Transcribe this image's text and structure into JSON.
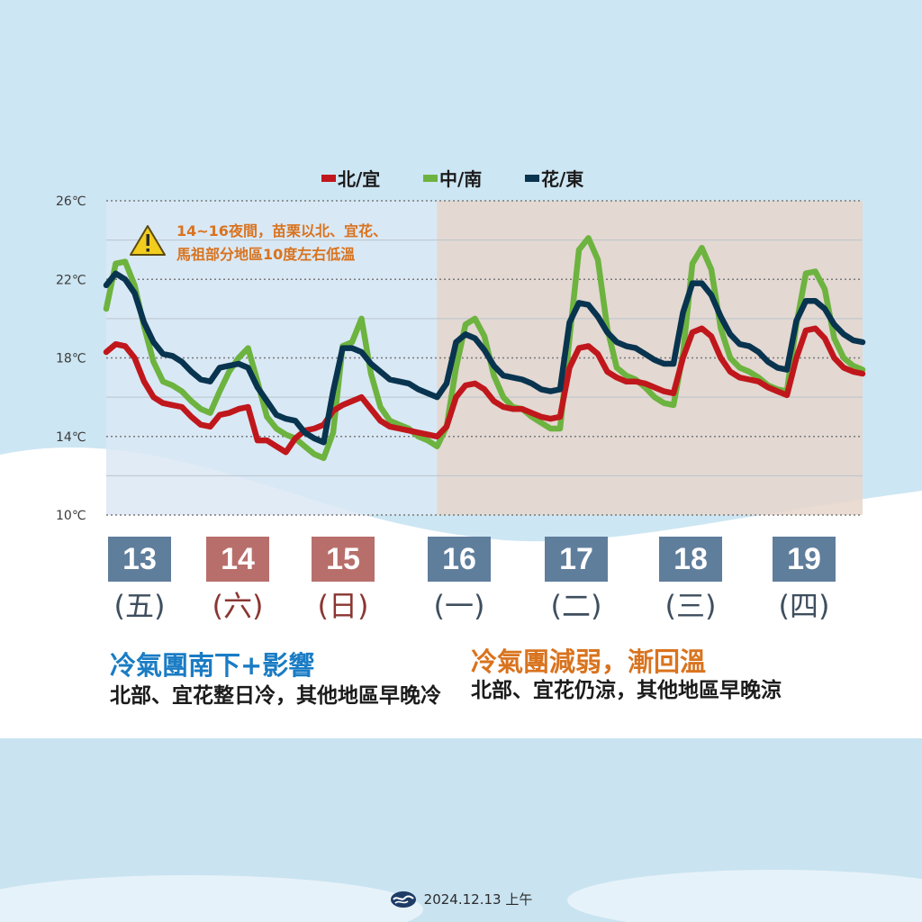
{
  "chart_data": {
    "type": "line",
    "yticks": [
      "26℃",
      "22℃",
      "18℃",
      "14℃",
      "10℃"
    ],
    "ylim": [
      10,
      26
    ],
    "legend": [
      {
        "label": "北/宜",
        "color": "#c0171c"
      },
      {
        "label": "中/南",
        "color": "#6db33f"
      },
      {
        "label": "花/東",
        "color": "#08344f"
      }
    ],
    "series": [
      {
        "name": "北/宜",
        "color": "#c0171c",
        "values": [
          18.3,
          18.7,
          18.6,
          18.0,
          16.8,
          16.0,
          15.7,
          15.6,
          15.5,
          15.0,
          14.6,
          14.5,
          15.1,
          15.2,
          15.4,
          15.5,
          13.8,
          13.8,
          13.5,
          13.2,
          13.9,
          14.3,
          14.4,
          14.6,
          15.3,
          15.6,
          15.8,
          16.0,
          15.4,
          14.8,
          14.5,
          14.4,
          14.3,
          14.2,
          14.1,
          14.0,
          14.5,
          16.0,
          16.6,
          16.7,
          16.4,
          15.8,
          15.5,
          15.4,
          15.4,
          15.2,
          15.0,
          14.9,
          15.0,
          17.5,
          18.5,
          18.6,
          18.2,
          17.3,
          17.0,
          16.8,
          16.8,
          16.7,
          16.5,
          16.3,
          16.2,
          18.0,
          19.3,
          19.5,
          19.1,
          18.0,
          17.3,
          17.0,
          16.9,
          16.8,
          16.5,
          16.3,
          16.1,
          18.0,
          19.4,
          19.5,
          19.0,
          18.0,
          17.5,
          17.3,
          17.2
        ]
      },
      {
        "name": "中/南",
        "color": "#6db33f",
        "values": [
          20.5,
          22.8,
          22.9,
          21.7,
          19.6,
          17.8,
          16.8,
          16.6,
          16.3,
          15.8,
          15.4,
          15.2,
          16.3,
          17.3,
          18.0,
          18.5,
          16.8,
          15.0,
          14.4,
          14.1,
          13.9,
          13.5,
          13.1,
          12.9,
          14.2,
          18.6,
          18.8,
          20.0,
          17.2,
          15.5,
          14.8,
          14.6,
          14.4,
          14.0,
          13.8,
          13.5,
          14.5,
          17.5,
          19.7,
          20.0,
          19.1,
          17.1,
          16.0,
          15.5,
          15.4,
          15.0,
          14.7,
          14.4,
          14.4,
          19.0,
          23.5,
          24.1,
          23.0,
          19.5,
          17.5,
          17.1,
          16.9,
          16.5,
          16.0,
          15.7,
          15.6,
          18.2,
          22.8,
          23.6,
          22.5,
          19.5,
          18.0,
          17.5,
          17.3,
          17.0,
          16.6,
          16.4,
          16.3,
          19.7,
          22.3,
          22.4,
          21.5,
          19.0,
          18.0,
          17.6,
          17.4
        ]
      },
      {
        "name": "花/東",
        "color": "#08344f",
        "values": [
          21.7,
          22.3,
          22.0,
          21.3,
          19.8,
          18.8,
          18.2,
          18.1,
          17.8,
          17.3,
          16.9,
          16.8,
          17.5,
          17.6,
          17.7,
          17.5,
          16.5,
          15.8,
          15.1,
          14.9,
          14.8,
          14.2,
          13.9,
          13.7,
          16.3,
          18.5,
          18.5,
          18.3,
          17.7,
          17.3,
          16.9,
          16.8,
          16.7,
          16.4,
          16.2,
          16.0,
          16.7,
          18.8,
          19.2,
          19.0,
          18.4,
          17.6,
          17.1,
          17.0,
          16.9,
          16.7,
          16.4,
          16.3,
          16.4,
          19.8,
          20.8,
          20.7,
          20.1,
          19.3,
          18.8,
          18.6,
          18.5,
          18.2,
          17.9,
          17.7,
          17.7,
          20.3,
          21.8,
          21.8,
          21.2,
          20.1,
          19.2,
          18.7,
          18.6,
          18.3,
          17.8,
          17.5,
          17.4,
          19.9,
          20.9,
          20.9,
          20.5,
          19.7,
          19.2,
          18.9,
          18.8
        ]
      }
    ],
    "shade_regions": [
      {
        "from": 0,
        "to": 35,
        "color": "#dbe8f5"
      },
      {
        "from": 35,
        "to": 80,
        "color": "#e6d5cb"
      }
    ],
    "annotation": {
      "line1": "14~16夜間，苗栗以北、宜花、",
      "line2": "馬祖部分地區10度左右低溫",
      "color": "#d9731e"
    }
  },
  "days": [
    {
      "date": "13",
      "weekday": "(五)",
      "box_color": "#5f7e9c",
      "text_color": "#3e4e5e"
    },
    {
      "date": "14",
      "weekday": "(六)",
      "box_color": "#b86f6b",
      "text_color": "#8a3632"
    },
    {
      "date": "15",
      "weekday": "(日)",
      "box_color": "#b86f6b",
      "text_color": "#8a3632"
    },
    {
      "date": "16",
      "weekday": "(一)",
      "box_color": "#5f7e9c",
      "text_color": "#3e4e5e"
    },
    {
      "date": "17",
      "weekday": "(二)",
      "box_color": "#5f7e9c",
      "text_color": "#3e4e5e"
    },
    {
      "date": "18",
      "weekday": "(三)",
      "box_color": "#5f7e9c",
      "text_color": "#3e4e5e"
    },
    {
      "date": "19",
      "weekday": "(四)",
      "box_color": "#5f7e9c",
      "text_color": "#3e4e5e"
    }
  ],
  "summary": {
    "left_title": "冷氣團南下+影響",
    "left_body": "北部、宜花整日冷，其他地區早晚冷",
    "right_title": "冷氣團減弱，漸回溫",
    "right_body": "北部、宜花仍涼，其他地區早晚涼"
  },
  "footer": {
    "date": "2024.12.13 上午",
    "logo_icon": "cwa-logo-icon"
  }
}
